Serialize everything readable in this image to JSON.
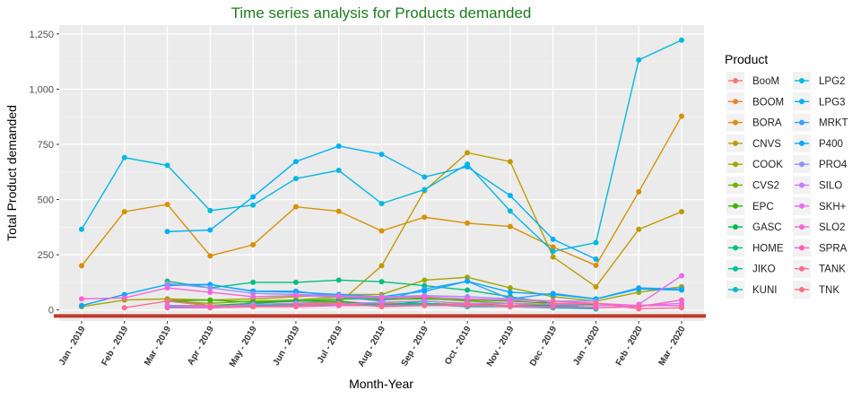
{
  "chart_data": {
    "type": "line",
    "title": "Time series analysis for Products demanded",
    "xlabel": "Month-Year",
    "ylabel": "Total Product demanded",
    "x": [
      "Jan - 2019",
      "Feb - 2019",
      "Mar - 2019",
      "Apr - 2019",
      "May - 2019",
      "Jun - 2019",
      "Jul - 2019",
      "Aug - 2019",
      "Sep - 2019",
      "Oct - 2019",
      "Nov - 2019",
      "Dec - 2019",
      "Jan - 2020",
      "Feb - 2020",
      "Mar - 2020"
    ],
    "ylim": [
      -50,
      1290
    ],
    "yticks": [
      0,
      250,
      500,
      750,
      1000,
      1250
    ],
    "ytick_labels": [
      "0",
      "250",
      "500",
      "750",
      "1,000",
      "1,250"
    ],
    "legend_title": "Product",
    "legend_position": "right",
    "grid": true,
    "panel_background": "#ebebeb",
    "baseline": {
      "value": -15,
      "color": "#c0392b"
    },
    "series": [
      {
        "name": "BooM",
        "color": "#F8766D",
        "values": [
          null,
          null,
          50,
          20,
          15,
          30,
          40,
          25,
          30,
          20,
          15,
          10,
          10,
          null,
          null
        ]
      },
      {
        "name": "BOOM",
        "color": "#EA8331",
        "values": [
          null,
          null,
          20,
          20,
          25,
          30,
          35,
          30,
          30,
          25,
          20,
          20,
          10,
          null,
          null
        ]
      },
      {
        "name": "BORA",
        "color": "#D89000",
        "values": [
          200,
          445,
          478,
          245,
          295,
          467,
          447,
          358,
          420,
          393,
          378,
          285,
          202,
          535,
          878
        ]
      },
      {
        "name": "CNVS",
        "color": "#C09B00",
        "values": [
          null,
          null,
          null,
          null,
          null,
          null,
          30,
          200,
          540,
          712,
          672,
          240,
          105,
          365,
          445
        ]
      },
      {
        "name": "COOK",
        "color": "#A3A500",
        "values": [
          15,
          45,
          50,
          45,
          50,
          60,
          70,
          70,
          135,
          148,
          100,
          60,
          40,
          80,
          105
        ]
      },
      {
        "name": "CVS2",
        "color": "#7CAE00",
        "values": [
          null,
          null,
          40,
          30,
          40,
          45,
          60,
          45,
          55,
          40,
          30,
          25,
          20,
          null,
          null
        ]
      },
      {
        "name": "EPC",
        "color": "#39B600",
        "values": [
          null,
          null,
          40,
          45,
          35,
          40,
          50,
          50,
          50,
          45,
          40,
          30,
          25,
          null,
          null
        ]
      },
      {
        "name": "GASC",
        "color": "#00BB4E",
        "values": [
          null,
          null,
          40,
          20,
          30,
          40,
          40,
          20,
          40,
          30,
          20,
          20,
          10,
          null,
          null
        ]
      },
      {
        "name": "HOME",
        "color": "#00BF7D",
        "values": [
          null,
          null,
          130,
          100,
          125,
          125,
          135,
          128,
          110,
          90,
          60,
          30,
          5,
          null,
          null
        ]
      },
      {
        "name": "JIKO",
        "color": "#00C1A3",
        "values": [
          null,
          null,
          20,
          15,
          20,
          25,
          30,
          25,
          30,
          20,
          20,
          15,
          10,
          null,
          null
        ]
      },
      {
        "name": "KUNI",
        "color": "#00BFC4",
        "values": [
          null,
          null,
          15,
          10,
          15,
          20,
          25,
          20,
          25,
          15,
          15,
          10,
          5,
          null,
          null
        ]
      },
      {
        "name": "LPG2",
        "color": "#00BAE0",
        "values": [
          365,
          690,
          655,
          450,
          475,
          595,
          632,
          482,
          545,
          660,
          448,
          265,
          305,
          1132,
          1222
        ]
      },
      {
        "name": "LPG3",
        "color": "#00B0F6",
        "values": [
          null,
          null,
          355,
          362,
          512,
          672,
          742,
          705,
          602,
          648,
          518,
          320,
          230,
          null,
          null
        ]
      },
      {
        "name": "MRKT",
        "color": "#35A2FF",
        "values": [
          null,
          null,
          110,
          115,
          85,
          85,
          60,
          40,
          95,
          130,
          50,
          75,
          50,
          100,
          95
        ]
      },
      {
        "name": "P400",
        "color": "#00A9FF",
        "values": [
          20,
          70,
          115,
          115,
          85,
          80,
          70,
          60,
          85,
          130,
          80,
          70,
          50,
          95,
          90
        ]
      },
      {
        "name": "PRO4",
        "color": "#9590FF",
        "values": [
          null,
          null,
          120,
          100,
          75,
          70,
          65,
          60,
          65,
          60,
          50,
          40,
          40,
          null,
          null
        ]
      },
      {
        "name": "SILO",
        "color": "#C77CFF",
        "values": [
          null,
          null,
          20,
          15,
          25,
          30,
          25,
          35,
          40,
          30,
          30,
          25,
          20,
          20,
          30
        ]
      },
      {
        "name": "SKH+",
        "color": "#E76BF3",
        "values": [
          null,
          null,
          null,
          null,
          null,
          null,
          null,
          null,
          null,
          null,
          null,
          null,
          null,
          25,
          155
        ]
      },
      {
        "name": "SLO2",
        "color": "#FA62DB",
        "values": [
          50,
          55,
          100,
          80,
          60,
          65,
          60,
          55,
          60,
          50,
          45,
          40,
          30,
          20,
          20
        ]
      },
      {
        "name": "SPRA",
        "color": "#FF62BC",
        "values": [
          null,
          null,
          10,
          10,
          15,
          15,
          20,
          20,
          20,
          20,
          15,
          15,
          10,
          15,
          45
        ]
      },
      {
        "name": "TANK",
        "color": "#FF6C91",
        "values": [
          null,
          10,
          40,
          20,
          15,
          20,
          30,
          15,
          20,
          25,
          20,
          30,
          30,
          5,
          10
        ]
      },
      {
        "name": "TNK",
        "color": "#FC717F",
        "values": [
          null,
          null,
          null,
          null,
          null,
          null,
          null,
          null,
          null,
          null,
          null,
          null,
          null,
          null,
          null
        ]
      }
    ]
  }
}
